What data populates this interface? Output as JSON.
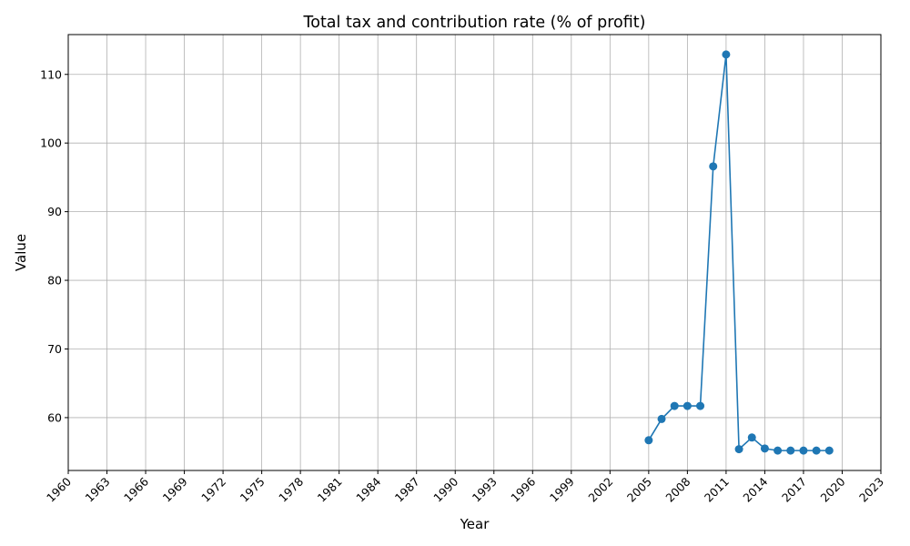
{
  "chart_data": {
    "type": "line",
    "title": "Total tax and contribution rate (% of profit)",
    "xlabel": "Year",
    "ylabel": "Value",
    "xlim": [
      1960,
      2023
    ],
    "ylim": [
      52.3,
      115.8
    ],
    "x_ticks": [
      1960,
      1963,
      1966,
      1969,
      1972,
      1975,
      1978,
      1981,
      1984,
      1987,
      1990,
      1993,
      1996,
      1999,
      2002,
      2005,
      2008,
      2011,
      2014,
      2017,
      2020,
      2023
    ],
    "y_ticks": [
      60,
      70,
      80,
      90,
      100,
      110
    ],
    "grid": true,
    "series": [
      {
        "color": "#1f77b4",
        "marker": "circle",
        "x": [
          2005,
          2006,
          2007,
          2008,
          2009,
          2010,
          2011,
          2012,
          2013,
          2014,
          2015,
          2016,
          2017,
          2018,
          2019
        ],
        "values": [
          56.7,
          59.8,
          61.7,
          61.7,
          61.7,
          96.6,
          112.9,
          55.4,
          57.1,
          55.5,
          55.2,
          55.2,
          55.2,
          55.2,
          55.2
        ]
      }
    ]
  }
}
